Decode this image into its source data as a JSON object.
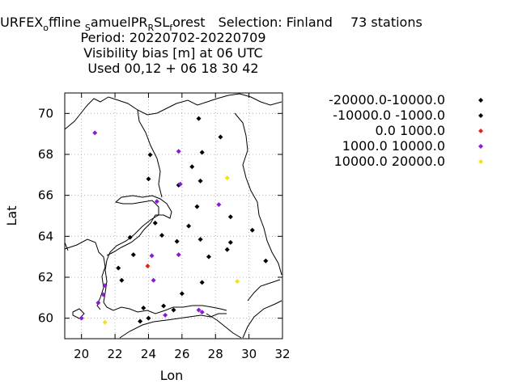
{
  "chart_data": {
    "type": "scatter",
    "title": {
      "line1": {
        "main": "SURFEX",
        "sub1": "o",
        "part2": "ffline",
        "sub2": "S",
        "part3": "amuelPR",
        "sub3": "R",
        "part4": "SL",
        "sub4": "f",
        "part5": "orest",
        "selection": "Selection: Finland",
        "stations": "73 stations"
      },
      "line2": "Period: 20220702-20220709",
      "line3": "Visibility bias [m] at  06 UTC",
      "line4": "Used  00,12  + 06 18 30 42"
    },
    "xlabel": "Lon",
    "ylabel": "Lat",
    "xlim": [
      19,
      32
    ],
    "ylim": [
      59,
      71
    ],
    "xticks": [
      "20",
      "22",
      "24",
      "26",
      "28",
      "30",
      "32"
    ],
    "yticks": [
      "60",
      "62",
      "64",
      "66",
      "68",
      "70"
    ],
    "grid": true,
    "legend_position": "right",
    "series": [
      {
        "name": "-20000.0-10000.0",
        "color": "#000000",
        "points": []
      },
      {
        "name": "-10000.0 -1000.0",
        "color": "#000000",
        "points": [
          [
            27.0,
            69.75
          ],
          [
            28.3,
            68.85
          ],
          [
            24.1,
            67.98
          ],
          [
            27.2,
            68.1
          ],
          [
            26.6,
            67.4
          ],
          [
            24.0,
            66.8
          ],
          [
            27.1,
            66.7
          ],
          [
            25.8,
            66.5
          ],
          [
            28.9,
            64.95
          ],
          [
            26.9,
            65.45
          ],
          [
            24.4,
            64.65
          ],
          [
            26.4,
            64.5
          ],
          [
            30.2,
            64.3
          ],
          [
            22.9,
            63.95
          ],
          [
            24.8,
            64.05
          ],
          [
            27.1,
            63.85
          ],
          [
            25.7,
            63.75
          ],
          [
            28.9,
            63.7
          ],
          [
            28.7,
            63.35
          ],
          [
            23.1,
            63.1
          ],
          [
            27.6,
            63.0
          ],
          [
            31.0,
            62.8
          ],
          [
            22.2,
            62.45
          ],
          [
            22.4,
            61.85
          ],
          [
            27.2,
            61.75
          ],
          [
            26.0,
            61.2
          ],
          [
            24.9,
            60.6
          ],
          [
            23.7,
            60.5
          ],
          [
            24.0,
            60.0
          ],
          [
            23.5,
            59.85
          ],
          [
            25.5,
            60.4
          ]
        ]
      },
      {
        "name": "0.0 1000.0",
        "color": "#e0261a",
        "points": [
          [
            23.95,
            62.55
          ]
        ]
      },
      {
        "name": "1000.0 10000.0",
        "color": "#8a1ad6",
        "points": [
          [
            20.8,
            69.05
          ],
          [
            25.8,
            68.15
          ],
          [
            25.9,
            66.55
          ],
          [
            24.5,
            65.7
          ],
          [
            28.2,
            65.55
          ],
          [
            24.2,
            63.05
          ],
          [
            25.8,
            63.1
          ],
          [
            24.3,
            61.85
          ],
          [
            21.4,
            61.6
          ],
          [
            21.3,
            61.15
          ],
          [
            21.0,
            60.75
          ],
          [
            20.0,
            60.0
          ],
          [
            25.0,
            60.15
          ],
          [
            27.0,
            60.4
          ],
          [
            27.2,
            60.3
          ]
        ]
      },
      {
        "name": "10000.0 20000.0",
        "color": "#f5e11a",
        "points": [
          [
            28.7,
            66.85
          ],
          [
            29.3,
            61.8
          ],
          [
            21.4,
            59.8
          ]
        ]
      }
    ]
  }
}
